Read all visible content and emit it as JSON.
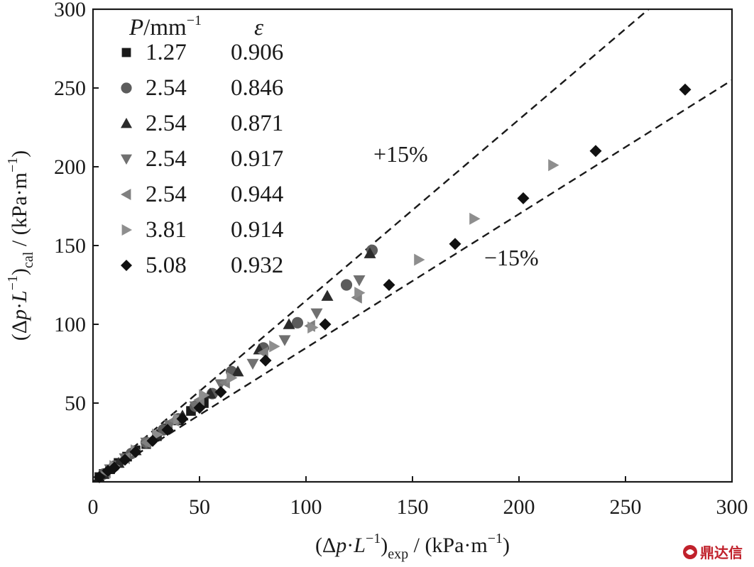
{
  "chart_data": {
    "type": "scatter",
    "title": "",
    "xlim": [
      0,
      300
    ],
    "ylim": [
      0,
      300
    ],
    "xticks": [
      0,
      50,
      100,
      150,
      200,
      250,
      300
    ],
    "yticks": [
      50,
      100,
      150,
      200,
      250,
      300
    ],
    "xlabel": {
      "open": "(Δ",
      "var1": "p",
      "dot": "·",
      "var2": "L",
      "exp": "−1",
      "close": ")",
      "sub": "exp",
      "unit": " / (kPa·m",
      "unit_exp": "−1",
      "unit_close": ")"
    },
    "ylabel": {
      "open": "(Δ",
      "var1": "p",
      "dot": "·",
      "var2": "L",
      "exp": "−1",
      "close": ")",
      "sub": "cal",
      "unit": " / (kPa·m",
      "unit_exp": "−1",
      "unit_close": ")"
    },
    "legend": {
      "placement": "top-left",
      "header_p_var": "P",
      "header_p_unit": "/mm",
      "header_p_exp": "−1",
      "header_eps": "ε"
    },
    "reference_lines": [
      {
        "label": "+15%",
        "slope": 1.15,
        "style": "dashed"
      },
      {
        "label": "−15%",
        "slope": 0.85,
        "style": "dashed"
      }
    ],
    "series": [
      {
        "p": "1.27",
        "eps": "0.906",
        "marker": "square",
        "color": "#1a1a1a",
        "points": [
          [
            3,
            3
          ],
          [
            5,
            5
          ],
          [
            8,
            8
          ],
          [
            12,
            12
          ],
          [
            16,
            16
          ],
          [
            20,
            20
          ],
          [
            25,
            24
          ],
          [
            30,
            29
          ],
          [
            35,
            34
          ],
          [
            40,
            39
          ],
          [
            46,
            45
          ],
          [
            52,
            50
          ]
        ]
      },
      {
        "p": "2.54",
        "eps": "0.846",
        "marker": "circle",
        "color": "#5c5c5c",
        "points": [
          [
            5,
            5
          ],
          [
            10,
            10
          ],
          [
            18,
            18
          ],
          [
            25,
            25
          ],
          [
            33,
            33
          ],
          [
            40,
            40
          ],
          [
            48,
            48
          ],
          [
            56,
            56
          ],
          [
            65,
            70
          ],
          [
            80,
            85
          ],
          [
            96,
            101
          ],
          [
            119,
            125
          ],
          [
            131,
            147
          ]
        ]
      },
      {
        "p": "2.54",
        "eps": "0.871",
        "marker": "triangle-up",
        "color": "#2b2b2b",
        "points": [
          [
            5,
            5
          ],
          [
            12,
            12
          ],
          [
            20,
            20
          ],
          [
            30,
            30
          ],
          [
            42,
            42
          ],
          [
            55,
            56
          ],
          [
            68,
            70
          ],
          [
            78,
            84
          ],
          [
            92,
            100
          ],
          [
            110,
            118
          ],
          [
            130,
            145
          ]
        ]
      },
      {
        "p": "2.54",
        "eps": "0.917",
        "marker": "triangle-down",
        "color": "#707070",
        "points": [
          [
            8,
            8
          ],
          [
            15,
            15
          ],
          [
            25,
            25
          ],
          [
            36,
            36
          ],
          [
            48,
            48
          ],
          [
            60,
            62
          ],
          [
            75,
            75
          ],
          [
            90,
            90
          ],
          [
            105,
            107
          ],
          [
            125,
            128
          ]
        ]
      },
      {
        "p": "2.54",
        "eps": "0.944",
        "marker": "triangle-left",
        "color": "#808080",
        "points": [
          [
            6,
            6
          ],
          [
            15,
            15
          ],
          [
            25,
            25
          ],
          [
            38,
            39
          ],
          [
            50,
            52
          ],
          [
            62,
            63
          ],
          [
            80,
            82
          ],
          [
            102,
            99
          ],
          [
            124,
            117
          ]
        ]
      },
      {
        "p": "3.81",
        "eps": "0.914",
        "marker": "triangle-right",
        "color": "#8e8e8e",
        "points": [
          [
            10,
            10
          ],
          [
            20,
            20
          ],
          [
            30,
            30
          ],
          [
            40,
            40
          ],
          [
            52,
            55
          ],
          [
            65,
            66
          ],
          [
            85,
            86
          ],
          [
            103,
            98
          ],
          [
            125,
            120
          ],
          [
            153,
            141
          ],
          [
            179,
            167
          ],
          [
            216,
            201
          ]
        ]
      },
      {
        "p": "5.08",
        "eps": "0.932",
        "marker": "diamond",
        "color": "#111111",
        "points": [
          [
            3,
            3
          ],
          [
            7,
            7
          ],
          [
            10,
            9
          ],
          [
            15,
            14
          ],
          [
            20,
            19
          ],
          [
            28,
            26
          ],
          [
            35,
            33
          ],
          [
            42,
            40
          ],
          [
            50,
            47
          ],
          [
            60,
            57
          ],
          [
            81,
            77
          ],
          [
            109,
            100
          ],
          [
            139,
            125
          ],
          [
            170,
            151
          ],
          [
            202,
            180
          ],
          [
            236,
            210
          ],
          [
            278,
            249
          ]
        ]
      }
    ]
  },
  "watermark": {
    "text": "鼎达信"
  }
}
